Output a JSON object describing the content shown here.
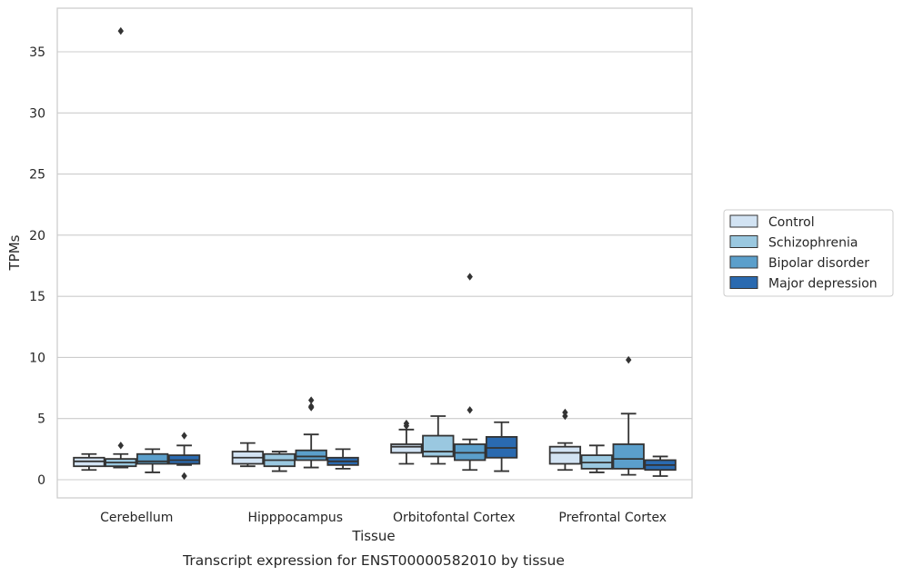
{
  "chart_data": {
    "type": "box",
    "title": "",
    "caption": "Transcript expression for ENST00000582010 by tissue",
    "xlabel": "Tissue",
    "ylabel": "TPMs",
    "ylim": [
      -1.5,
      38
    ],
    "yticks": [
      0,
      5,
      10,
      15,
      20,
      25,
      30,
      35
    ],
    "grid": "horizontal",
    "legend_position": "right",
    "categories": [
      "Cerebellum",
      "Hipppocampus",
      "Orbitofontal Cortex",
      "Prefrontal Cortex"
    ],
    "series": [
      {
        "name": "Control",
        "color": "#d2e3f3",
        "boxes": [
          {
            "whislo": 0.8,
            "q1": 1.1,
            "med": 1.5,
            "q3": 1.8,
            "whishi": 2.1,
            "fliers": []
          },
          {
            "whislo": 1.1,
            "q1": 1.3,
            "med": 1.8,
            "q3": 2.3,
            "whishi": 3.0,
            "fliers": []
          },
          {
            "whislo": 1.3,
            "q1": 2.2,
            "med": 2.7,
            "q3": 2.9,
            "whishi": 4.1,
            "fliers": [
              4.4,
              4.6
            ]
          },
          {
            "whislo": 0.8,
            "q1": 1.3,
            "med": 2.2,
            "q3": 2.7,
            "whishi": 3.0,
            "fliers": [
              5.2,
              5.5
            ]
          }
        ]
      },
      {
        "name": "Schizophrenia",
        "color": "#9ac8e0",
        "boxes": [
          {
            "whislo": 1.0,
            "q1": 1.1,
            "med": 1.4,
            "q3": 1.7,
            "whishi": 2.1,
            "fliers": [
              2.8
            ]
          },
          {
            "whislo": 0.7,
            "q1": 1.1,
            "med": 1.6,
            "q3": 2.1,
            "whishi": 2.3,
            "fliers": []
          },
          {
            "whislo": 1.3,
            "q1": 1.9,
            "med": 2.3,
            "q3": 3.6,
            "whishi": 5.2,
            "fliers": []
          },
          {
            "whislo": 0.6,
            "q1": 0.9,
            "med": 1.4,
            "q3": 2.0,
            "whishi": 2.8,
            "fliers": []
          }
        ]
      },
      {
        "name": "Bipolar disorder",
        "color": "#5b9fcb",
        "boxes": [
          {
            "whislo": 0.6,
            "q1": 1.3,
            "med": 1.5,
            "q3": 2.1,
            "whishi": 2.5,
            "fliers": []
          },
          {
            "whislo": 1.0,
            "q1": 1.6,
            "med": 1.9,
            "q3": 2.4,
            "whishi": 3.7,
            "fliers": [
              5.9,
              6.0,
              6.5
            ]
          },
          {
            "whislo": 0.8,
            "q1": 1.6,
            "med": 2.2,
            "q3": 2.9,
            "whishi": 3.3,
            "fliers": [
              5.7,
              16.6
            ]
          },
          {
            "whislo": 0.4,
            "q1": 0.9,
            "med": 1.7,
            "q3": 2.9,
            "whishi": 5.4,
            "fliers": [
              9.8
            ]
          }
        ]
      },
      {
        "name": "Major depression",
        "color": "#2a6ab0",
        "boxes": [
          {
            "whislo": 1.2,
            "q1": 1.3,
            "med": 1.6,
            "q3": 2.0,
            "whishi": 2.8,
            "fliers": [
              3.6,
              0.3
            ]
          },
          {
            "whislo": 0.9,
            "q1": 1.2,
            "med": 1.5,
            "q3": 1.8,
            "whishi": 2.5,
            "fliers": []
          },
          {
            "whislo": 0.7,
            "q1": 1.8,
            "med": 2.6,
            "q3": 3.5,
            "whishi": 4.7,
            "fliers": []
          },
          {
            "whislo": 0.3,
            "q1": 0.8,
            "med": 1.2,
            "q3": 1.6,
            "whishi": 1.9,
            "fliers": []
          }
        ]
      }
    ],
    "extra_fliers": [
      {
        "category": "Cerebellum",
        "series": "Schizophrenia",
        "value": 36.7
      }
    ]
  }
}
